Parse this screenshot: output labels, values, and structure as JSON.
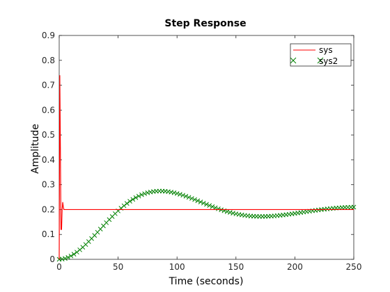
{
  "chart_data": {
    "type": "line",
    "title": "Step Response",
    "xlabel": "Time (seconds)",
    "ylabel": "Amplitude",
    "xlim": [
      0,
      250
    ],
    "ylim": [
      0,
      0.9
    ],
    "xticks": [
      "0",
      "50",
      "100",
      "150",
      "200",
      "250"
    ],
    "yticks": [
      "0",
      "0.1",
      "0.2",
      "0.3",
      "0.4",
      "0.5",
      "0.6",
      "0.7",
      "0.8",
      "0.9"
    ],
    "grid": false,
    "legend": {
      "placement": "top-right",
      "entries": [
        {
          "name": "sys",
          "marker": "line",
          "color": "#ff0000"
        },
        {
          "name": "sys2",
          "marker": "x",
          "color": "#008000"
        }
      ]
    },
    "series": [
      {
        "name": "sys",
        "style": "line",
        "color": "#ff0000",
        "x": [
          0,
          0.5,
          1,
          1.5,
          2,
          2.5,
          3,
          3.5,
          4,
          5,
          6,
          8,
          10,
          15,
          20,
          50,
          100,
          150,
          200,
          250
        ],
        "y": [
          0,
          0.74,
          0.45,
          0.12,
          0.12,
          0.2,
          0.23,
          0.21,
          0.2,
          0.2,
          0.2,
          0.2,
          0.2,
          0.2,
          0.2,
          0.2,
          0.2,
          0.2,
          0.2,
          0.2
        ]
      },
      {
        "name": "sys2",
        "style": "markers",
        "marker": "x",
        "color": "#008000"
      }
    ]
  }
}
